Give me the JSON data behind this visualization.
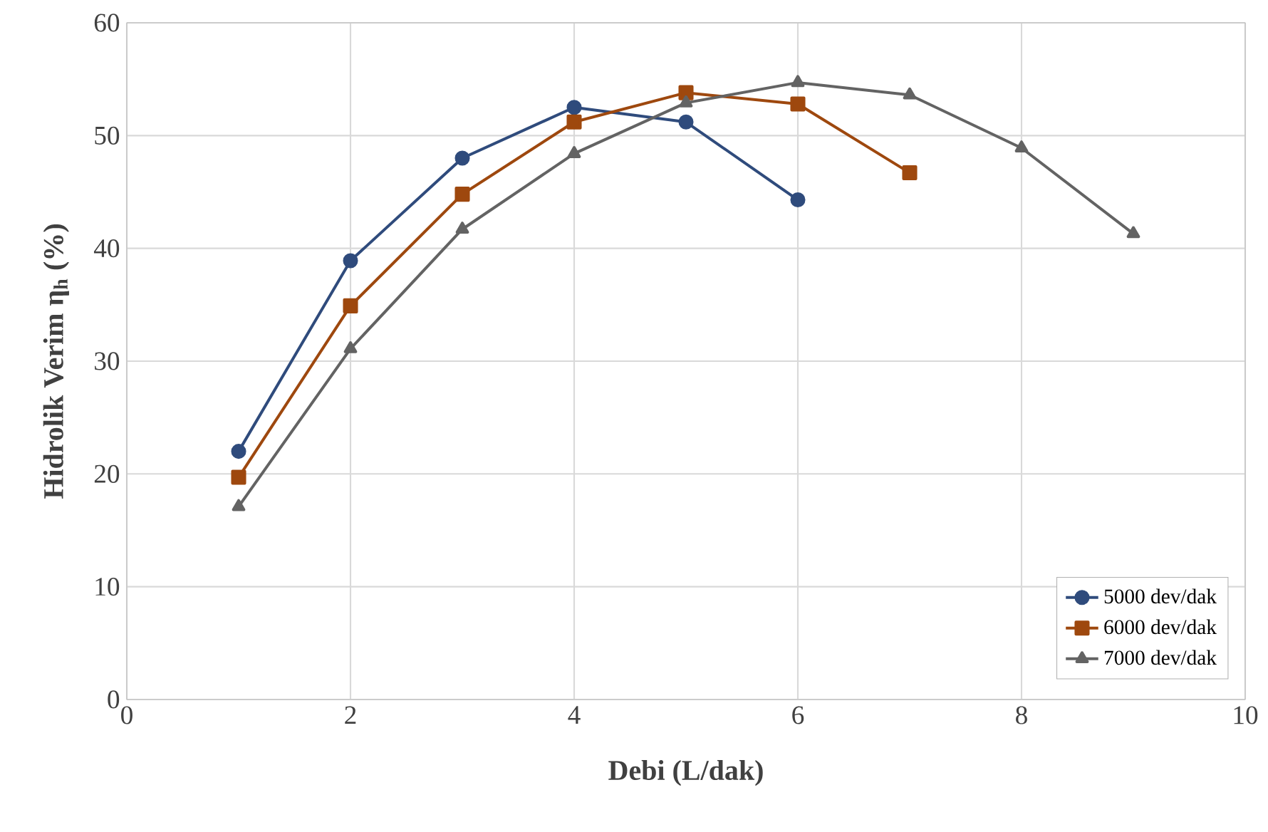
{
  "chart_data": {
    "type": "line",
    "xlabel": "Debi (L/dak)",
    "ylabel": "Hidrolik Verim η$_{h}$ (%)",
    "xlim": [
      0,
      10
    ],
    "xticks": [
      0,
      2,
      4,
      6,
      8,
      10
    ],
    "ylim": [
      0,
      60
    ],
    "yticks": [
      0,
      10,
      20,
      30,
      40,
      50,
      60
    ],
    "grid": true,
    "legend": "bottom right",
    "line_style": "solid",
    "series": [
      {
        "name": "5000 dev/dak",
        "color": "#2f4b7c",
        "marker": "circle",
        "x": [
          1,
          2,
          3,
          4,
          5,
          6
        ],
        "values": [
          22.0,
          38.9,
          48.0,
          52.5,
          51.2,
          44.3
        ]
      },
      {
        "name": "6000 dev/dak",
        "color": "#9e480e",
        "marker": "square",
        "x": [
          1,
          2,
          3,
          4,
          5,
          6,
          7
        ],
        "values": [
          19.7,
          34.9,
          44.8,
          51.2,
          53.8,
          52.8,
          46.7
        ]
      },
      {
        "name": "7000 dev/dak",
        "color": "#636363",
        "marker": "triangle",
        "x": [
          1,
          2,
          3,
          4,
          5,
          6,
          7,
          8,
          9
        ],
        "values": [
          17.1,
          31.1,
          41.7,
          48.4,
          52.9,
          54.7,
          53.6,
          48.9,
          41.3
        ]
      }
    ]
  }
}
